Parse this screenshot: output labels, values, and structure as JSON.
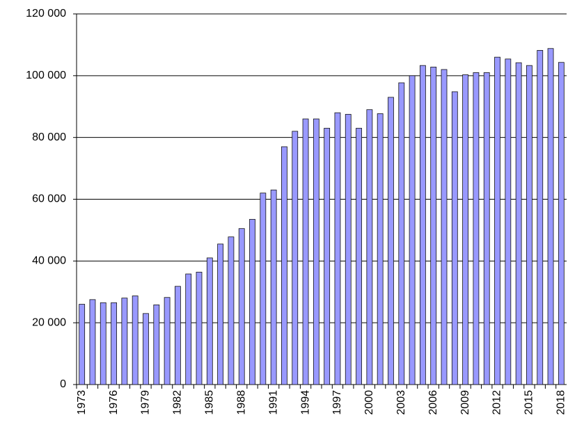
{
  "chart_data": {
    "type": "bar",
    "categories": [
      "1973",
      null,
      null,
      "1976",
      null,
      null,
      "1979",
      null,
      null,
      "1982",
      null,
      null,
      "1985",
      null,
      null,
      "1988",
      null,
      null,
      "1991",
      null,
      null,
      "1994",
      null,
      null,
      "1997",
      null,
      null,
      "2000",
      null,
      null,
      "2003",
      null,
      null,
      "2006",
      null,
      null,
      "2009",
      null,
      null,
      "2012",
      null,
      null,
      "2015",
      null,
      null,
      "2018"
    ],
    "values": [
      26000,
      27500,
      26500,
      26500,
      28000,
      28700,
      23000,
      25800,
      28200,
      31800,
      35800,
      36400,
      41000,
      45500,
      47800,
      50500,
      53500,
      62000,
      63000,
      77000,
      82000,
      86000,
      86000,
      83000,
      88000,
      87500,
      83000,
      89000,
      87700,
      93000,
      97700,
      100000,
      103300,
      102800,
      102000,
      94800,
      100300,
      101000,
      101000,
      106000,
      105400,
      104200,
      103300,
      108200,
      108800,
      104300
    ],
    "color": "#9999ff",
    "ylim": [
      0,
      120000
    ],
    "yticks": [
      0,
      {
        "value": 20000,
        "label": "20 000"
      },
      {
        "value": 40000,
        "label": "40 000"
      },
      {
        "value": 60000,
        "label": "60 000"
      },
      {
        "value": 80000,
        "label": "80 000"
      },
      {
        "value": 100000,
        "label": "100 000"
      },
      {
        "value": 120000,
        "label": "120 000"
      }
    ],
    "grid": true
  }
}
